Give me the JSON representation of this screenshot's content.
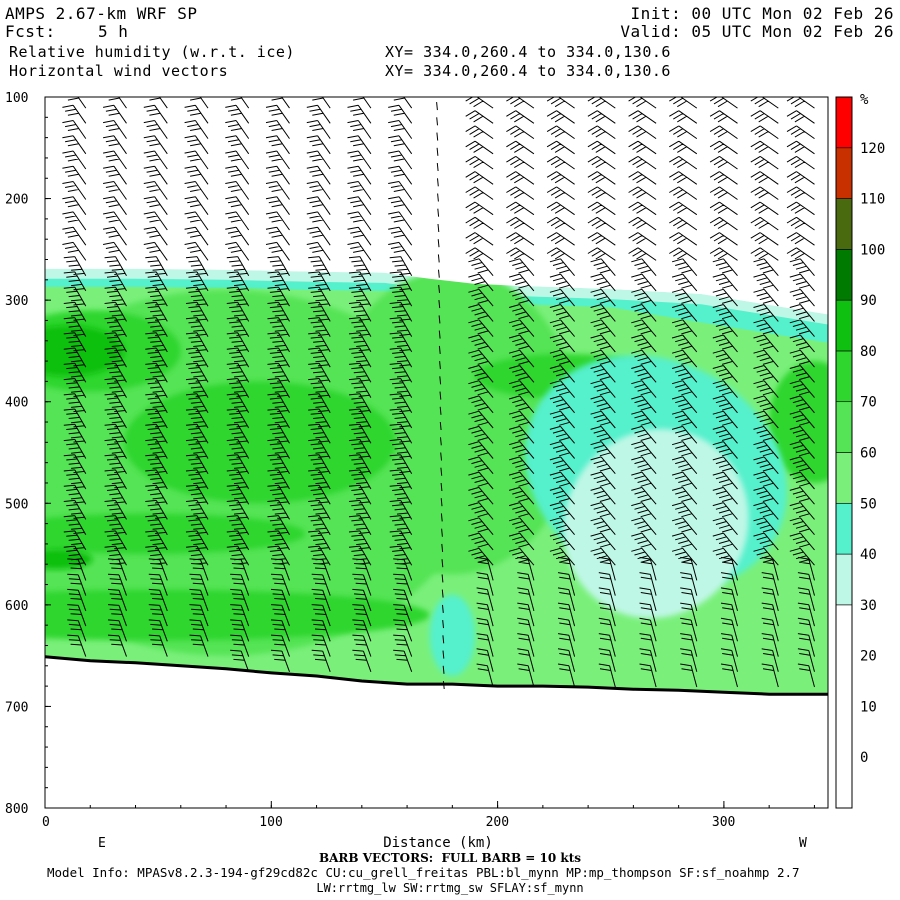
{
  "header": {
    "model": "AMPS 2.67-km WRF SP",
    "fcst_label": "Fcst:",
    "fcst_value": "5 h",
    "field1": "Relative humidity (w.r.t. ice)",
    "field2": "Horizontal wind vectors",
    "xy1": "XY= 334.0,260.4 to 334.0,130.6",
    "xy2": "XY= 334.0,260.4 to 334.0,130.6",
    "init": "Init: 00 UTC Mon 02 Feb 26",
    "valid": "Valid: 05 UTC Mon 02 Feb 26"
  },
  "footer": {
    "barb_note": "BARB VECTORS:  FULL BARB = 10 kts",
    "model_info": "Model Info: MPASv8.2.3-194-gf29cd82c CU:cu_grell_freitas PBL:bl_mynn MP:mp_thompson SF:sf_noahmp 2.7",
    "model_info2": "LW:rrtmg_lw SW:rrtmg_sw SFLAY:sf_mynn"
  },
  "chart_data": {
    "type": "heatmap",
    "title": "Relative humidity (w.r.t. ice)",
    "overlay": "Horizontal wind vectors",
    "xlabel": "Distance (km)",
    "xlim": [
      0,
      346
    ],
    "xticks": [
      0,
      100,
      200,
      300
    ],
    "x_end_labels": {
      "left": "E",
      "right": "W"
    },
    "ylabel": "",
    "ylim": [
      100,
      800
    ],
    "y_reversed": true,
    "yticks": [
      100,
      200,
      300,
      400,
      500,
      600,
      700,
      800
    ],
    "colorbar": {
      "unit": "%",
      "ticks": [
        0,
        10,
        20,
        30,
        40,
        50,
        60,
        70,
        80,
        90,
        100,
        110,
        120
      ],
      "levels": [
        {
          "from": -10,
          "to": 30,
          "color": "#ffffff"
        },
        {
          "from": 30,
          "to": 40,
          "color": "#bff7e6"
        },
        {
          "from": 40,
          "to": 50,
          "color": "#55f0cc"
        },
        {
          "from": 50,
          "to": 60,
          "color": "#7af07a"
        },
        {
          "from": 60,
          "to": 70,
          "color": "#55e455"
        },
        {
          "from": 70,
          "to": 80,
          "color": "#2ed62e"
        },
        {
          "from": 80,
          "to": 90,
          "color": "#10c010"
        },
        {
          "from": 90,
          "to": 100,
          "color": "#007a00"
        },
        {
          "from": 100,
          "to": 110,
          "color": "#4a6a10"
        },
        {
          "from": 110,
          "to": 120,
          "color": "#c83000"
        },
        {
          "from": 120,
          "to": 130,
          "color": "#ff0000"
        }
      ]
    },
    "terrain_pressure": [
      [
        0,
        651
      ],
      [
        20,
        655
      ],
      [
        40,
        657
      ],
      [
        60,
        660
      ],
      [
        80,
        663
      ],
      [
        100,
        667
      ],
      [
        120,
        670
      ],
      [
        140,
        675
      ],
      [
        160,
        678
      ],
      [
        180,
        678
      ],
      [
        200,
        680
      ],
      [
        220,
        680
      ],
      [
        240,
        681
      ],
      [
        260,
        683
      ],
      [
        280,
        684
      ],
      [
        300,
        686
      ],
      [
        320,
        688
      ],
      [
        346,
        688
      ]
    ],
    "cloud_top_pressure": [
      [
        0,
        275
      ],
      [
        40,
        275
      ],
      [
        80,
        276
      ],
      [
        120,
        278
      ],
      [
        150,
        279
      ],
      [
        170,
        285
      ],
      [
        190,
        290
      ],
      [
        210,
        292
      ],
      [
        250,
        295
      ],
      [
        290,
        300
      ],
      [
        346,
        320
      ]
    ],
    "barb_columns_km": [
      4,
      22,
      40,
      58,
      76,
      94,
      112,
      130,
      148,
      166,
      202,
      220,
      238,
      256,
      274,
      292,
      310,
      328,
      344
    ]
  }
}
